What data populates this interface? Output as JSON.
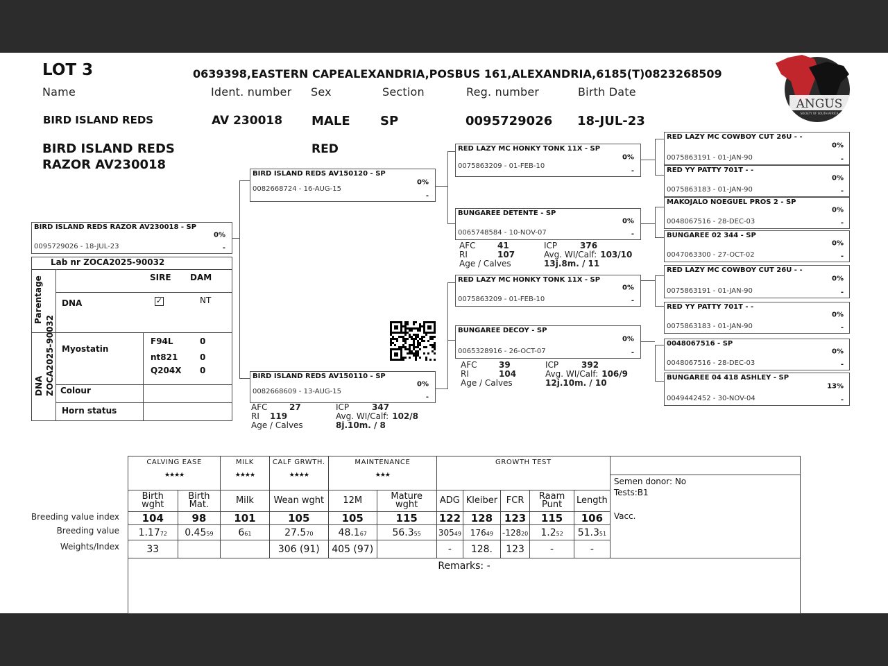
{
  "header": {
    "lot": "LOT 3",
    "address": "0639398,EASTERN CAPEALEXANDRIA,POSBUS 161,ALEXANDRIA,6185(T)0823268509",
    "labels": {
      "name": "Name",
      "ident": "Ident. number",
      "sex": "Sex",
      "section": "Section",
      "reg": "Reg. number",
      "birth": "Birth Date"
    },
    "values": {
      "name": "BIRD ISLAND REDS",
      "ident": "AV  230018",
      "sex": "MALE",
      "section": "SP",
      "reg": "0095729026",
      "birth": "18-JUL-23",
      "full_name_1": "BIRD ISLAND REDS",
      "full_name_2": "RAZOR  AV230018",
      "colour": "RED"
    }
  },
  "logo": {
    "text": "ANGUS",
    "sub": "SOCIETY OF SOUTH AFRICA",
    "colors": {
      "red": "#c0262c",
      "black": "#1a1a1a"
    }
  },
  "pedigree": {
    "subject": {
      "name": "BIRD ISLAND REDS RAZOR  AV230018 - SP",
      "reg": "0095729026 -  18-JUL-23",
      "pct": "0%",
      "dash": "-"
    },
    "sire": {
      "name": "BIRD ISLAND REDS AV150120 - SP",
      "reg": "0082668724 - 16-AUG-15",
      "pct": "0%",
      "dash": "-"
    },
    "dam": {
      "name": "BIRD ISLAND REDS AV150110 - SP",
      "reg": "0082668609 - 13-AUG-15",
      "pct": "0%",
      "dash": "-"
    },
    "ss": {
      "name": "RED LAZY MC HONKY TONK 11X - SP",
      "reg": "0075863209 - 01-FEB-10",
      "pct": "0%",
      "dash": "-"
    },
    "sd": {
      "name": "BUNGAREE DETENTE - SP",
      "reg": "0065748584 - 10-NOV-07",
      "pct": "0%",
      "dash": "-"
    },
    "ds": {
      "name": "RED LAZY MC HONKY TONK 11X - SP",
      "reg": "0075863209 - 01-FEB-10",
      "pct": "0%",
      "dash": "-"
    },
    "dd": {
      "name": "BUNGAREE DECOY - SP",
      "reg": "0065328916 - 26-OCT-07",
      "pct": "0%",
      "dash": "-"
    },
    "g3": [
      {
        "name": "RED LAZY MC COWBOY CUT 26U - -",
        "reg": "0075863191 - 01-JAN-90",
        "pct": "0%",
        "dash": "-"
      },
      {
        "name": "RED YY PATTY 701T - -",
        "reg": "0075863183 - 01-JAN-90",
        "pct": "0%",
        "dash": "-"
      },
      {
        "name": "MAKOJALO NOEGUEL PROS 2 - SP",
        "reg": "0048067516 - 28-DEC-03",
        "pct": "0%",
        "dash": "-"
      },
      {
        "name": "BUNGAREE 02 344 - SP",
        "reg": "0047063300 - 27-OCT-02",
        "pct": "0%",
        "dash": "-"
      },
      {
        "name": "RED LAZY MC COWBOY CUT 26U - -",
        "reg": "0075863191 - 01-JAN-90",
        "pct": "0%",
        "dash": "-"
      },
      {
        "name": "RED YY PATTY 701T - -",
        "reg": "0075863183 - 01-JAN-90",
        "pct": "0%",
        "dash": "-"
      },
      {
        "name": "0048067516 - SP",
        "reg": "0048067516 - 28-DEC-03",
        "pct": "0%",
        "dash": "-"
      },
      {
        "name": "BUNGAREE 04 418 ASHLEY - SP",
        "reg": "0049442452 - 30-NOV-04",
        "pct": "13%",
        "dash": "-"
      }
    ]
  },
  "dam_stats": {
    "labels": {
      "afc": "AFC",
      "ri": "RI",
      "age": "Age / Calves",
      "icp": "ICP",
      "avg": "Avg. WI/Calf:"
    },
    "sd": {
      "afc": "41",
      "ri": "107",
      "icp": "376",
      "avg": "103/10",
      "age": "13j.8m. / 11"
    },
    "dd": {
      "afc": "39",
      "ri": "104",
      "icp": "392",
      "avg": "106/9",
      "age": "12j.10m. / 10"
    },
    "dam": {
      "afc": "27",
      "ri": "119",
      "icp": "347",
      "avg": "102/8",
      "age": "8j.10m. / 8"
    }
  },
  "lab": {
    "title": "Lab nr  ZOCA2025-90032",
    "side1": "Parentage",
    "side2a": "DNA",
    "side2b": "ZOCA2025-90032",
    "sire": "SIRE",
    "dam": "DAM",
    "dna": "DNA",
    "sire_dna": "checked",
    "dam_dna": "NT",
    "myostatin": "Myostatin",
    "markers": [
      {
        "name": "F94L",
        "value": "0"
      },
      {
        "name": "nt821",
        "value": "0"
      },
      {
        "name": "Q204X",
        "value": "0"
      }
    ],
    "colour": "Colour",
    "horn": "Horn status"
  },
  "breeding": {
    "groups": [
      {
        "label": "CALVING EASE",
        "stars": "★★★★"
      },
      {
        "label": "MILK",
        "stars": "★★★★"
      },
      {
        "label": "CALF GRWTH.",
        "stars": "★★★★"
      },
      {
        "label": "MAINTENANCE",
        "stars": "★★★"
      },
      {
        "label": "GROWTH TEST",
        "stars": ""
      }
    ],
    "row_labels": [
      "Breeding value index",
      "Breeding value",
      "Weights/Index"
    ],
    "columns": [
      {
        "h": "Birth wght",
        "idx": "104",
        "bv": "1.17",
        "acc": "72",
        "w": "33"
      },
      {
        "h": "Birth Mat.",
        "idx": "98",
        "bv": "0.45",
        "acc": "59",
        "w": ""
      },
      {
        "h": "Milk",
        "idx": "101",
        "bv": "6",
        "acc": "61",
        "w": ""
      },
      {
        "h": "Wean wght",
        "idx": "105",
        "bv": "27.5",
        "acc": "70",
        "w": "306  (91)"
      },
      {
        "h": "12M",
        "idx": "105",
        "bv": "48.1",
        "acc": "67",
        "w": "405 (97)"
      },
      {
        "h": "Mature wght",
        "idx": "115",
        "bv": "56.3",
        "acc": "55",
        "w": ""
      },
      {
        "h": "ADG",
        "idx": "122",
        "bv": "305",
        "acc": "49",
        "w": "-"
      },
      {
        "h": "Kleiber",
        "idx": "128",
        "bv": "176",
        "acc": "49",
        "w": "128."
      },
      {
        "h": "FCR",
        "idx": "123",
        "bv": "-128",
        "acc": "20",
        "w": "123"
      },
      {
        "h": "Raam Punt",
        "idx": "115",
        "bv": "1.2",
        "acc": "52",
        "w": "-"
      },
      {
        "h": "Length",
        "idx": "106",
        "bv": "51.3",
        "acc": "51",
        "w": "-"
      }
    ],
    "semen": "Semen donor: No",
    "tests": "Tests:B1",
    "vacc": "Vacc.",
    "remarks": "Remarks: -"
  }
}
